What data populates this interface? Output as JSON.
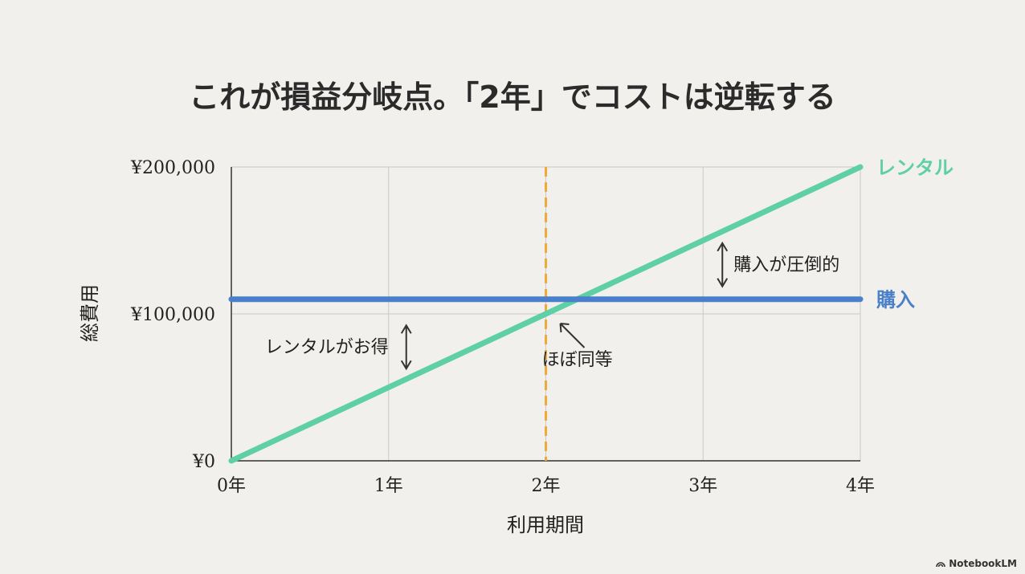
{
  "chart_data": {
    "type": "line",
    "title": "これが損益分岐点。「2年」でコストは逆転する",
    "xlabel": "利用期間",
    "ylabel": "総費用",
    "x": [
      0,
      1,
      2,
      3,
      4
    ],
    "x_tick_labels": [
      "0年",
      "1年",
      "2年",
      "3年",
      "4年"
    ],
    "xlim": [
      0,
      4
    ],
    "y_ticks": [
      0,
      100000,
      200000
    ],
    "y_tick_labels": [
      "¥0",
      "¥100,000",
      "¥200,000"
    ],
    "ylim": [
      0,
      200000
    ],
    "grid": true,
    "series": [
      {
        "name": "レンタル",
        "x": [
          0,
          4
        ],
        "values": [
          0,
          200000
        ],
        "color": "#5fcfa8"
      },
      {
        "name": "購入",
        "x": [
          0,
          4
        ],
        "values": [
          110000,
          110000
        ],
        "color": "#4a7fc9"
      }
    ],
    "breakeven": {
      "x": 2,
      "color": "#f0aa3c"
    },
    "annotations": [
      {
        "text": "レンタルがお得",
        "x": 1,
        "y": 78000
      },
      {
        "text": "ほぼ同等",
        "x": 2.2,
        "y": 65000
      },
      {
        "text": "購入が圧倒的",
        "x": 3.3,
        "y": 134000
      }
    ]
  },
  "brand": {
    "name": "NotebookLM"
  }
}
